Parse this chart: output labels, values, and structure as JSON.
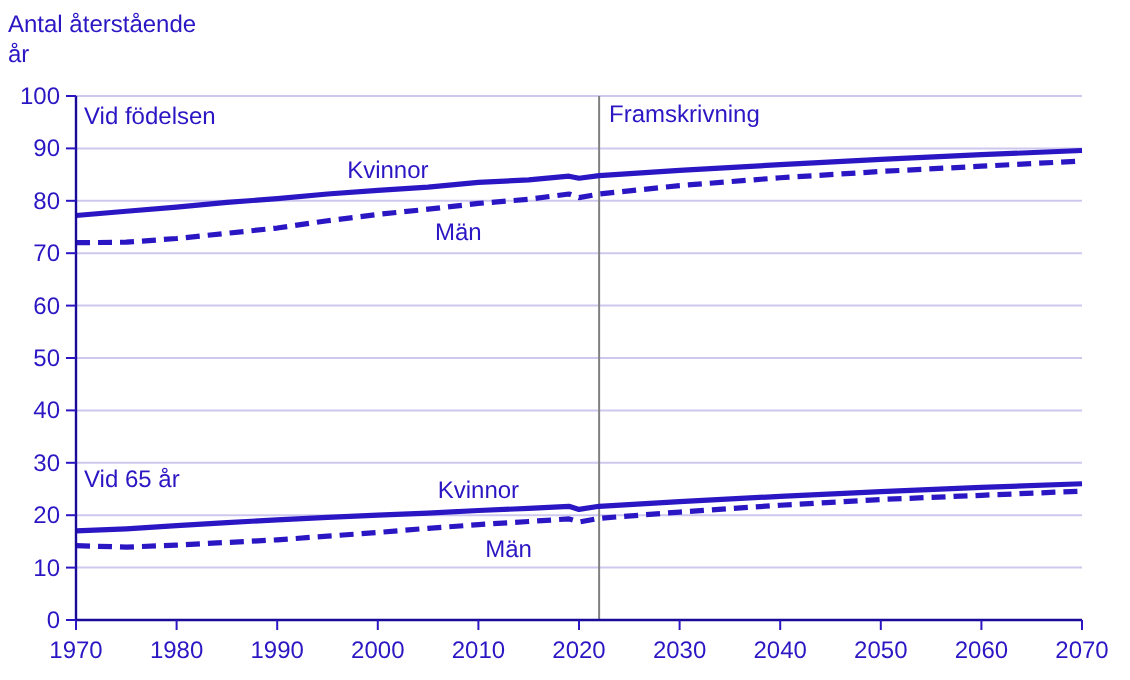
{
  "chart_data": {
    "type": "line",
    "ylabel": "Antal återstående år",
    "xlim": [
      1970,
      2070
    ],
    "xticks": [
      1970,
      1980,
      1990,
      2000,
      2010,
      2020,
      2030,
      2040,
      2050,
      2060,
      2070
    ],
    "ylim": [
      0,
      100
    ],
    "yticks": [
      0,
      10,
      20,
      30,
      40,
      50,
      60,
      70,
      80,
      90,
      100
    ],
    "grid": "y",
    "series": [
      {
        "name": "Kvinnor",
        "color": "#2b16c4",
        "line_style": "solid",
        "x": [
          1970,
          1975,
          1980,
          1985,
          1990,
          1995,
          2000,
          2005,
          2010,
          2015,
          2019,
          2020,
          2022,
          2030,
          2040,
          2050,
          2060,
          2070
        ],
        "values": [
          77.2,
          78.0,
          78.8,
          79.7,
          80.4,
          81.3,
          82.0,
          82.6,
          83.5,
          84.0,
          84.7,
          84.3,
          84.8,
          85.8,
          86.9,
          87.9,
          88.8,
          89.6
        ]
      },
      {
        "name": "Män",
        "color": "#2b16c4",
        "line_style": "dashed",
        "x": [
          1970,
          1975,
          1980,
          1985,
          1990,
          1995,
          2000,
          2005,
          2010,
          2015,
          2019,
          2020,
          2022,
          2030,
          2040,
          2050,
          2060,
          2070
        ],
        "values": [
          72.0,
          72.1,
          72.8,
          73.8,
          74.8,
          76.2,
          77.4,
          78.4,
          79.5,
          80.3,
          81.3,
          80.6,
          81.3,
          82.9,
          84.4,
          85.6,
          86.6,
          87.6
        ]
      },
      {
        "name": "Kvinnor",
        "color": "#2b16c4",
        "line_style": "solid",
        "x": [
          1970,
          1975,
          1980,
          1985,
          1990,
          1995,
          2000,
          2005,
          2010,
          2015,
          2019,
          2020,
          2022,
          2030,
          2040,
          2050,
          2060,
          2070
        ],
        "values": [
          17.0,
          17.4,
          18.0,
          18.6,
          19.1,
          19.6,
          20.0,
          20.4,
          20.9,
          21.3,
          21.7,
          21.1,
          21.7,
          22.6,
          23.6,
          24.5,
          25.3,
          26.0
        ]
      },
      {
        "name": "Män",
        "color": "#2b16c4",
        "line_style": "dashed",
        "x": [
          1970,
          1975,
          1980,
          1985,
          1990,
          1995,
          2000,
          2005,
          2010,
          2015,
          2019,
          2020,
          2022,
          2030,
          2040,
          2050,
          2060,
          2070
        ],
        "values": [
          14.2,
          13.9,
          14.3,
          14.8,
          15.3,
          16.0,
          16.7,
          17.5,
          18.2,
          18.8,
          19.3,
          18.7,
          19.4,
          20.6,
          21.9,
          23.0,
          23.8,
          24.6
        ]
      }
    ],
    "ref_lines": [
      {
        "axis": "x",
        "value": 2022,
        "label": "Framskrivning",
        "color": "#808080"
      }
    ],
    "annotations": [
      "Vid födelsen",
      "Vid 65 år"
    ]
  }
}
